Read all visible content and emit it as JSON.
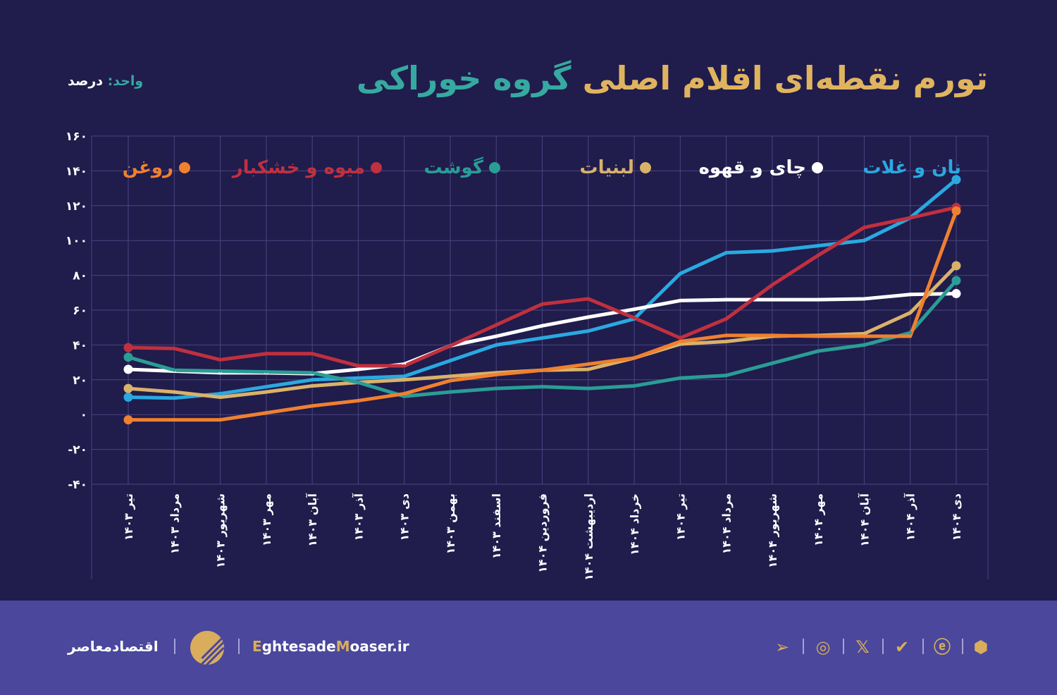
{
  "header": {
    "title_part1": "تورم نقطه‌ای اقلام اصلی",
    "title_part2": "گروه خوراکی",
    "unit_label": "واحد:",
    "unit_value": "درصد"
  },
  "footer": {
    "brand": "اقتصادمعاصر",
    "site_e": "E",
    "site_mid": "ghtesade",
    "site_m": "M",
    "site_end": "oaser.ir",
    "social_icons": [
      "telegram-icon",
      "instagram-icon",
      "x-icon",
      "shield-check-icon",
      "e-logo-icon",
      "hexagon-icon"
    ]
  },
  "chart_data": {
    "type": "line",
    "title": "تورم نقطه‌ای اقلام اصلی گروه خوراکی",
    "ylabel": "درصد",
    "ylim": [
      -40,
      160
    ],
    "yticks": [
      -40,
      -20,
      0,
      20,
      40,
      60,
      80,
      100,
      120,
      140,
      160
    ],
    "ytick_labels": [
      "-۴۰",
      "-۲۰",
      "۰",
      "۲۰",
      "۴۰",
      "۶۰",
      "۸۰",
      "۱۰۰",
      "۱۲۰",
      "۱۴۰",
      "۱۶۰"
    ],
    "grid": true,
    "legend_position": "top",
    "categories": [
      "تیر ۱۴۰۳",
      "مرداد ۱۴۰۳",
      "شهریور ۱۴۰۳",
      "مهر ۱۴۰۳",
      "آبان ۱۴۰۳",
      "آذر ۱۴۰۳",
      "دی ۱۴۰۳",
      "بهمن ۱۴۰۳",
      "اسفند ۱۴۰۳",
      "فروردین ۱۴۰۴",
      "اردیبهشت ۱۴۰۴",
      "خرداد ۱۴۰۴",
      "تیر ۱۴۰۴",
      "مرداد ۱۴۰۴",
      "شهریور ۱۴۰۴",
      "مهر ۱۴۰۴",
      "آبان ۱۴۰۴",
      "آذر ۱۴۰۴",
      "دی ۱۴۰۴"
    ],
    "series": [
      {
        "name": "نان و غلات",
        "color": "#2aa9e0",
        "values": [
          10,
          9.5,
          12,
          16,
          20,
          21,
          22,
          31,
          40,
          44,
          48,
          55,
          81,
          93,
          94,
          97,
          100,
          113,
          135
        ]
      },
      {
        "name": "چای و قهوه",
        "color": "#ffffff",
        "values": [
          26,
          25,
          24,
          24,
          23.5,
          26,
          29,
          39.5,
          45,
          51,
          56,
          60.5,
          65.5,
          66,
          66,
          66,
          66.5,
          69,
          69.5
        ]
      },
      {
        "name": "لبنیات",
        "color": "#d9b26a",
        "values": [
          15,
          13,
          10,
          13,
          16.5,
          18.5,
          20,
          22,
          24,
          25.5,
          26,
          32.5,
          40.5,
          42,
          45,
          45.5,
          46.5,
          58.5,
          85.5
        ]
      },
      {
        "name": "گوشت",
        "color": "#2a9d95",
        "values": [
          33,
          25.5,
          25,
          24.5,
          24,
          18.5,
          10.5,
          13,
          15,
          16,
          15,
          16.5,
          21,
          22.5,
          29.5,
          36.5,
          40,
          47,
          77
        ]
      },
      {
        "name": "میوه و خشکبار",
        "color": "#c0303f",
        "values": [
          38.5,
          38,
          31.5,
          35,
          35,
          28,
          28,
          39.5,
          51.5,
          63.5,
          66.5,
          55.5,
          44,
          55,
          74.5,
          91.5,
          107.5,
          113,
          119
        ]
      },
      {
        "name": "روغن",
        "color": "#ef8030",
        "values": [
          -3,
          -3,
          -3,
          1,
          5,
          8,
          12,
          19.5,
          23,
          25.5,
          29,
          32.5,
          42,
          45.5,
          45.5,
          45,
          45,
          45,
          117
        ]
      }
    ]
  }
}
